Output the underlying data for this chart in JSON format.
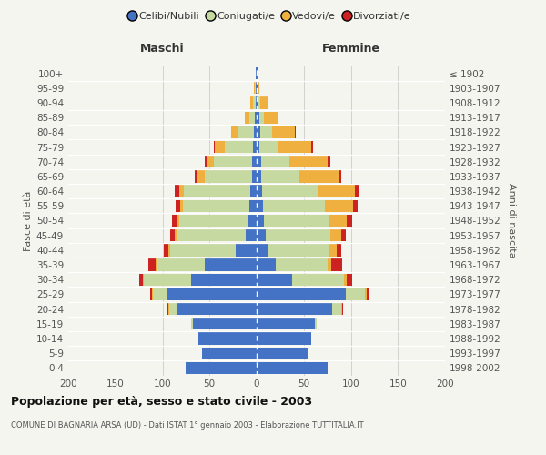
{
  "age_groups": [
    "0-4",
    "5-9",
    "10-14",
    "15-19",
    "20-24",
    "25-29",
    "30-34",
    "35-39",
    "40-44",
    "45-49",
    "50-54",
    "55-59",
    "60-64",
    "65-69",
    "70-74",
    "75-79",
    "80-84",
    "85-89",
    "90-94",
    "95-99",
    "100+"
  ],
  "birth_years": [
    "1998-2002",
    "1993-1997",
    "1988-1992",
    "1983-1987",
    "1978-1982",
    "1973-1977",
    "1968-1972",
    "1963-1967",
    "1958-1962",
    "1953-1957",
    "1948-1952",
    "1943-1947",
    "1938-1942",
    "1933-1937",
    "1928-1932",
    "1923-1927",
    "1918-1922",
    "1913-1917",
    "1908-1912",
    "1903-1907",
    "≤ 1902"
  ],
  "maschi": {
    "celibi": [
      75,
      58,
      62,
      68,
      85,
      95,
      70,
      55,
      22,
      12,
      10,
      8,
      7,
      5,
      5,
      4,
      3,
      2,
      1,
      1,
      1
    ],
    "coniugati": [
      0,
      0,
      0,
      2,
      8,
      15,
      50,
      50,
      70,
      72,
      72,
      70,
      70,
      50,
      40,
      30,
      16,
      6,
      3,
      1,
      0
    ],
    "vedovi": [
      0,
      0,
      0,
      0,
      1,
      1,
      1,
      2,
      2,
      3,
      3,
      3,
      5,
      8,
      8,
      10,
      8,
      5,
      3,
      1,
      0
    ],
    "divorziati": [
      0,
      0,
      0,
      0,
      1,
      2,
      4,
      8,
      5,
      5,
      5,
      5,
      5,
      3,
      2,
      1,
      0,
      0,
      0,
      0,
      0
    ]
  },
  "femmine": {
    "nubili": [
      75,
      55,
      58,
      62,
      80,
      95,
      38,
      20,
      12,
      10,
      8,
      7,
      6,
      5,
      5,
      3,
      4,
      3,
      2,
      1,
      1
    ],
    "coniugate": [
      0,
      0,
      0,
      2,
      10,
      20,
      55,
      55,
      65,
      68,
      68,
      65,
      60,
      40,
      30,
      20,
      12,
      5,
      2,
      0,
      0
    ],
    "vedove": [
      0,
      0,
      0,
      0,
      1,
      2,
      3,
      4,
      8,
      12,
      20,
      30,
      38,
      42,
      40,
      35,
      25,
      15,
      8,
      2,
      0
    ],
    "divorziate": [
      0,
      0,
      0,
      0,
      1,
      2,
      5,
      12,
      5,
      5,
      5,
      5,
      4,
      3,
      3,
      2,
      1,
      0,
      0,
      0,
      0
    ]
  },
  "colors": {
    "celibi_nubili": "#4472c4",
    "coniugati": "#c5d9a0",
    "vedovi": "#f0b040",
    "divorziati": "#cc2222"
  },
  "title": "Popolazione per età, sesso e stato civile - 2003",
  "subtitle": "COMUNE DI BAGNARIA ARSA (UD) - Dati ISTAT 1° gennaio 2003 - Elaborazione TUTTITALIA.IT",
  "xlabel_maschi": "Maschi",
  "xlabel_femmine": "Femmine",
  "ylabel_left": "Fasce di età",
  "ylabel_right": "Anni di nascita",
  "xlim": 200,
  "bg_color": "#f5f5ef",
  "legend": [
    "Celibi/Nubili",
    "Coniugati/e",
    "Vedovi/e",
    "Divorziati/e"
  ]
}
